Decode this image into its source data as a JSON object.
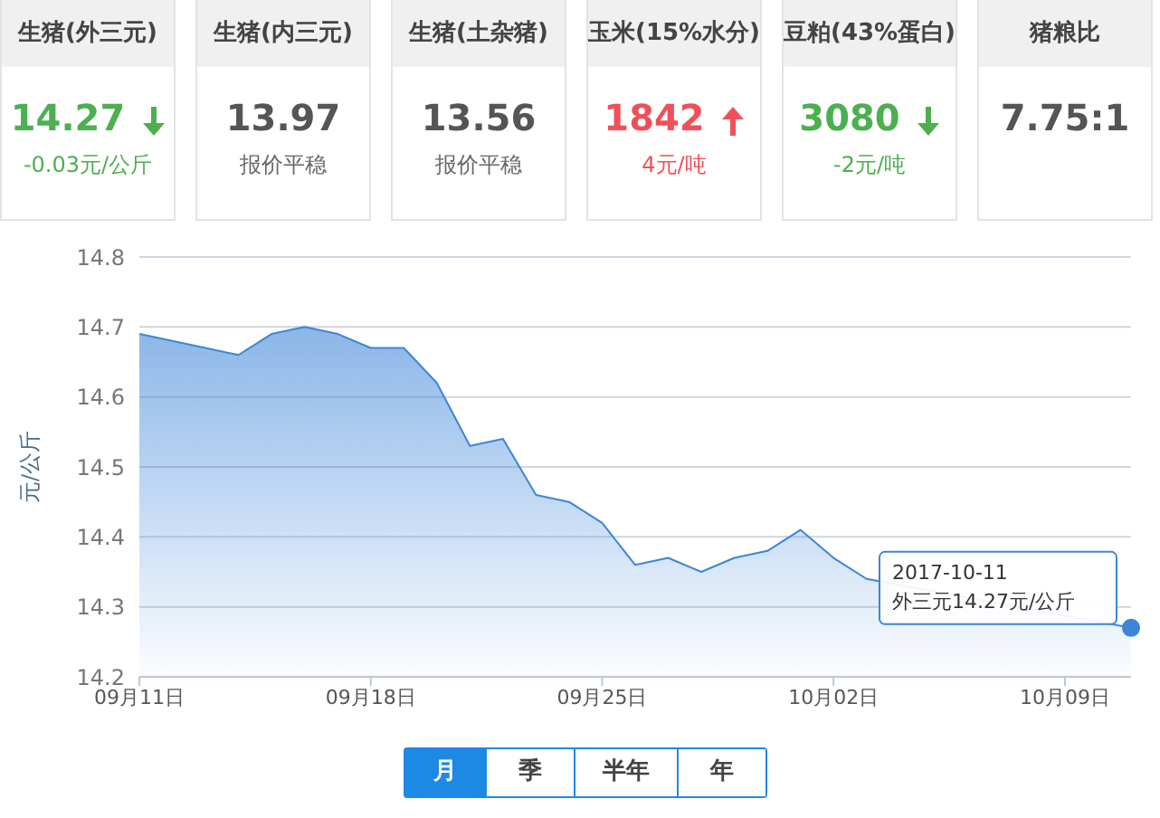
{
  "chart_data": [
    {
      "type": "other",
      "categories": [
        "生猪(外三元)",
        "生猪(内三元)",
        "生猪(土杂猪)",
        "玉米(15%水分)",
        "豆粕(43%蛋白)",
        "猪粮比"
      ],
      "annotations": [
        "14.27\n-0.03元/公斤",
        "13.97\n报价平稳",
        "13.56\n报价平稳",
        "1842\n4元/吨",
        "3080\n-2元/吨",
        "7.75:1"
      ]
    },
    {
      "type": "area",
      "ylabel": "元/公斤",
      "x": [
        "2017-09-11",
        "2017-09-12",
        "2017-09-13",
        "2017-09-14",
        "2017-09-15",
        "2017-09-16",
        "2017-09-17",
        "2017-09-18",
        "2017-09-19",
        "2017-09-20",
        "2017-09-21",
        "2017-09-22",
        "2017-09-23",
        "2017-09-24",
        "2017-09-25",
        "2017-09-26",
        "2017-09-27",
        "2017-09-28",
        "2017-09-29",
        "2017-09-30",
        "2017-10-01",
        "2017-10-02",
        "2017-10-03",
        "2017-10-04",
        "2017-10-05",
        "2017-10-06",
        "2017-10-07",
        "2017-10-08",
        "2017-10-09",
        "2017-10-10",
        "2017-10-11"
      ],
      "series": [
        {
          "color": "#3d85d8",
          "values": [
            14.69,
            14.68,
            14.67,
            14.66,
            14.69,
            14.7,
            14.69,
            14.67,
            14.67,
            14.62,
            14.53,
            14.54,
            14.46,
            14.45,
            14.42,
            14.36,
            14.37,
            14.35,
            14.37,
            14.38,
            14.41,
            14.37,
            14.34,
            null,
            null,
            null,
            null,
            null,
            null,
            null,
            14.27
          ]
        }
      ],
      "xlim": [
        "2017-09-11",
        "2017-10-11"
      ],
      "xticks": [
        {
          "value": "2017-09-11",
          "label": "09月11日"
        },
        {
          "value": "2017-09-18",
          "label": "09月18日"
        },
        {
          "value": "2017-09-25",
          "label": "09月25日"
        },
        {
          "value": "2017-10-02",
          "label": "10月02日"
        },
        {
          "value": "2017-10-09",
          "label": "10月09日"
        }
      ],
      "ylim": [
        14.2,
        14.8
      ],
      "yticks": [
        14.2,
        14.3,
        14.4,
        14.5,
        14.6,
        14.7,
        14.8
      ],
      "grid": "y",
      "annotations": [
        {
          "text": "2017-10-11\n外三元14.27元/公斤",
          "x": "2017-10-11",
          "y": 14.27
        },
        "月",
        "季",
        "半年",
        "年"
      ]
    }
  ]
}
